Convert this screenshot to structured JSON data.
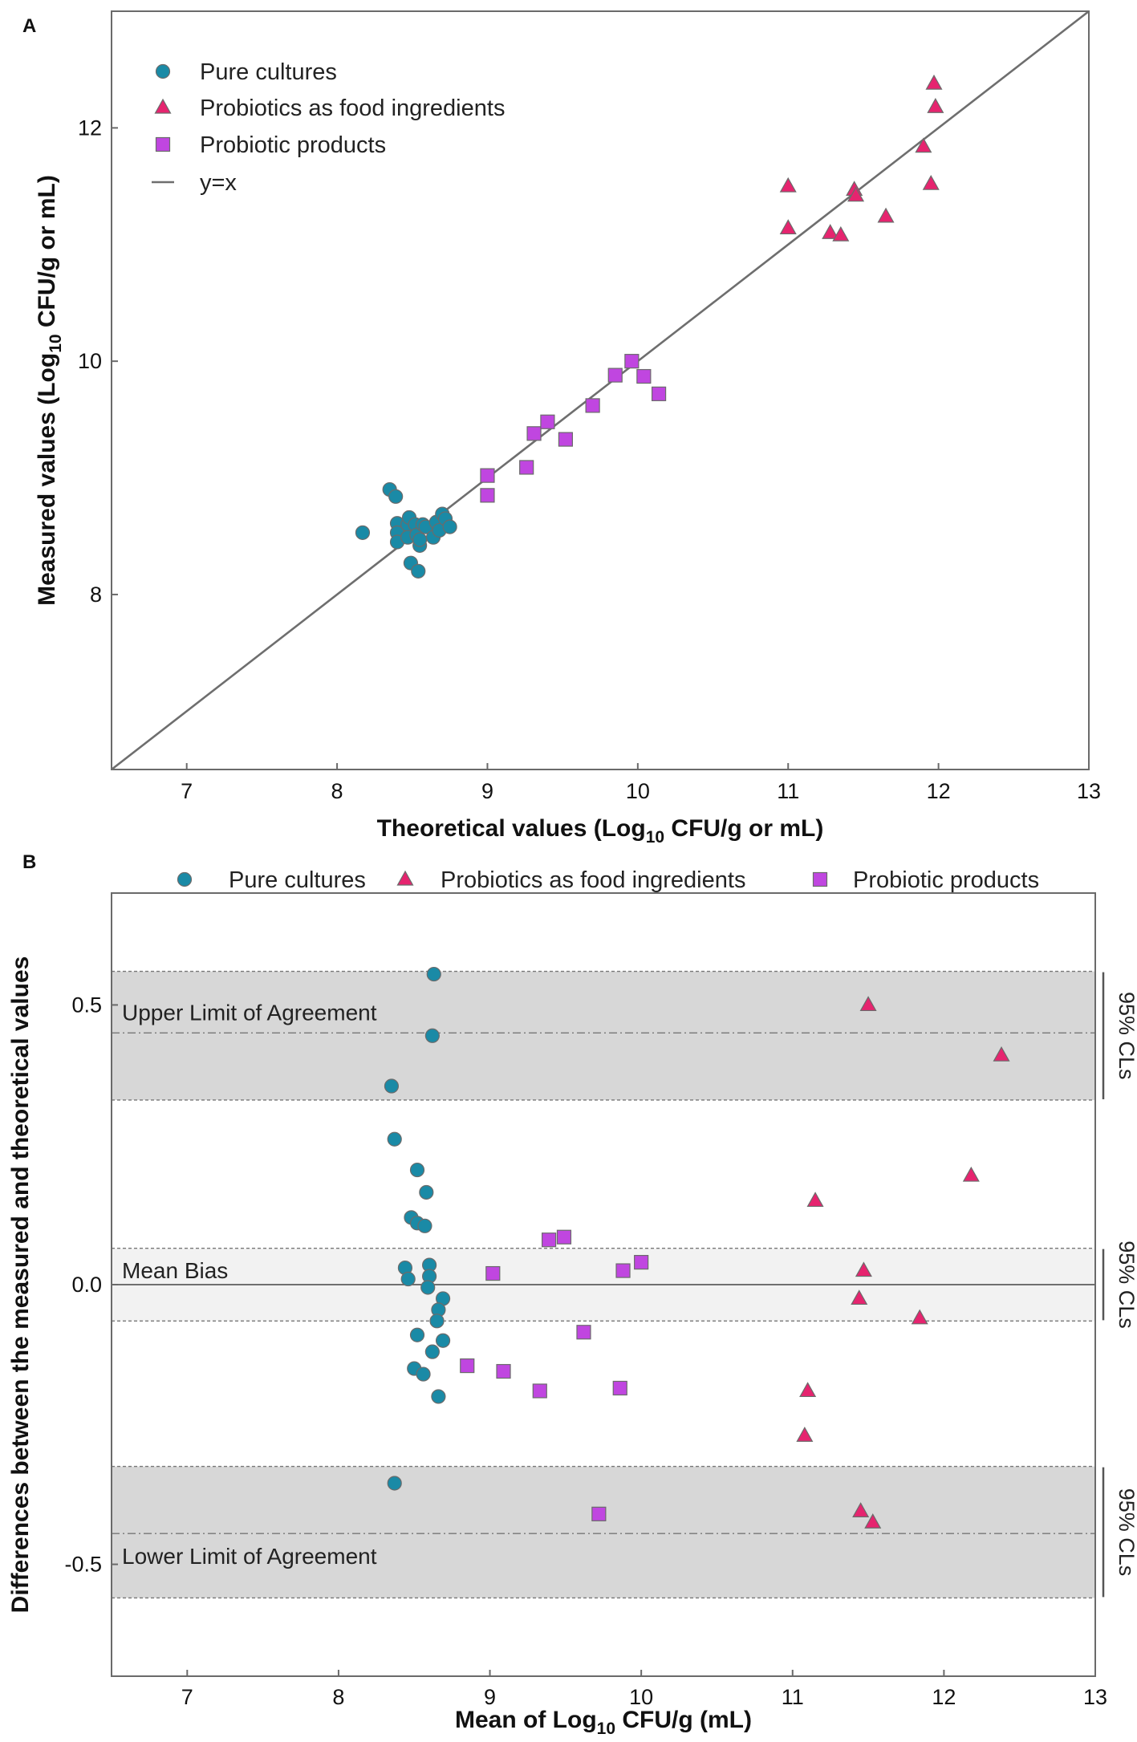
{
  "colors": {
    "pure_cultures": "#1a8aa6",
    "food_ingredients": "#e6246f",
    "probiotic_products": "#c046e0",
    "marker_edge": "#6b6b6b",
    "identity_line": "#6e6e6e",
    "loa_band": "#d7d7d7",
    "bias_band": "#f2f2f2"
  },
  "icons": {
    "pure_cultures": "circle-marker-icon",
    "food_ingredients": "triangle-marker-icon",
    "probiotic_products": "square-marker-icon",
    "identity_line": "line-icon"
  },
  "chart_data": [
    {
      "panel": "A",
      "type": "scatter",
      "xlabel": {
        "main": "Theoretical values (Log",
        "sub": "10",
        "end": " CFU/g or mL)"
      },
      "ylabel": {
        "main": "Measured values (Log",
        "sub": "10",
        "end": " CFU/g or mL)"
      },
      "xlim": [
        6.5,
        13
      ],
      "ylim": [
        6.5,
        13
      ],
      "xticks": [
        7,
        8,
        9,
        10,
        11,
        12,
        13
      ],
      "yticks": [
        8,
        10,
        12
      ],
      "grid": false,
      "legend_position": "top-left",
      "reference_line": {
        "label": "y=x",
        "slope": 1,
        "intercept": 0
      },
      "series": [
        {
          "name": "Pure cultures",
          "marker": "circle",
          "points": [
            [
              8.17,
              8.53
            ],
            [
              8.35,
              8.9
            ],
            [
              8.39,
              8.84
            ],
            [
              8.4,
              8.61
            ],
            [
              8.4,
              8.53
            ],
            [
              8.4,
              8.45
            ],
            [
              8.47,
              8.6
            ],
            [
              8.47,
              8.49
            ],
            [
              8.48,
              8.66
            ],
            [
              8.49,
              8.27
            ],
            [
              8.52,
              8.6
            ],
            [
              8.53,
              8.51
            ],
            [
              8.54,
              8.2
            ],
            [
              8.55,
              8.42
            ],
            [
              8.55,
              8.47
            ],
            [
              8.57,
              8.6
            ],
            [
              8.59,
              8.58
            ],
            [
              8.64,
              8.49
            ],
            [
              8.66,
              8.62
            ],
            [
              8.68,
              8.55
            ],
            [
              8.7,
              8.69
            ],
            [
              8.72,
              8.65
            ],
            [
              8.75,
              8.58
            ]
          ]
        },
        {
          "name": "Probiotics as food ingredients",
          "marker": "triangle",
          "points": [
            [
              11.0,
              11.5
            ],
            [
              11.0,
              11.14
            ],
            [
              11.28,
              11.1
            ],
            [
              11.35,
              11.08
            ],
            [
              11.44,
              11.47
            ],
            [
              11.45,
              11.42
            ],
            [
              11.65,
              11.24
            ],
            [
              11.9,
              11.84
            ],
            [
              11.95,
              11.52
            ],
            [
              11.97,
              12.38
            ],
            [
              11.98,
              12.18
            ]
          ]
        },
        {
          "name": "Probiotic products",
          "marker": "square",
          "points": [
            [
              9.0,
              9.02
            ],
            [
              9.0,
              8.85
            ],
            [
              9.26,
              9.09
            ],
            [
              9.31,
              9.38
            ],
            [
              9.4,
              9.48
            ],
            [
              9.52,
              9.33
            ],
            [
              9.7,
              9.62
            ],
            [
              9.85,
              9.88
            ],
            [
              9.96,
              10.0
            ],
            [
              10.04,
              9.87
            ],
            [
              10.14,
              9.72
            ]
          ]
        }
      ]
    },
    {
      "panel": "B",
      "type": "scatter",
      "subtype": "bland-altman",
      "xlabel": {
        "main": "Mean of Log",
        "sub": "10",
        "end": " CFU/g (mL)"
      },
      "ylabel": "Differences between the measured and theoretical values",
      "xlim": [
        6.5,
        13
      ],
      "ylim": [
        -0.7,
        0.7
      ],
      "xticks": [
        7,
        8,
        9,
        10,
        11,
        12,
        13
      ],
      "yticks": [
        0.5,
        0.0,
        -0.5
      ],
      "ytick_labels": [
        "0.5",
        "0.0",
        "-0.5"
      ],
      "grid": false,
      "legend_position": "top",
      "reference_lines": [
        {
          "label": "Upper Limit of Agreement",
          "value": 0.45,
          "ci": [
            0.33,
            0.56
          ],
          "ci_label": "95% CLs"
        },
        {
          "label": "Mean Bias",
          "value": 0.0,
          "ci": [
            -0.065,
            0.065
          ],
          "ci_label": "95% CLs"
        },
        {
          "label": "Lower Limit of Agreement",
          "value": -0.445,
          "ci": [
            -0.56,
            -0.325
          ],
          "ci_label": "95% CLs"
        }
      ],
      "series": [
        {
          "name": "Pure cultures",
          "marker": "circle",
          "points": [
            [
              8.63,
              0.555
            ],
            [
              8.62,
              0.445
            ],
            [
              8.35,
              0.355
            ],
            [
              8.37,
              0.26
            ],
            [
              8.52,
              0.205
            ],
            [
              8.58,
              0.165
            ],
            [
              8.48,
              0.12
            ],
            [
              8.52,
              0.11
            ],
            [
              8.57,
              0.105
            ],
            [
              8.44,
              0.03
            ],
            [
              8.6,
              0.035
            ],
            [
              8.46,
              0.01
            ],
            [
              8.6,
              0.015
            ],
            [
              8.59,
              -0.005
            ],
            [
              8.69,
              -0.025
            ],
            [
              8.66,
              -0.045
            ],
            [
              8.65,
              -0.065
            ],
            [
              8.52,
              -0.09
            ],
            [
              8.69,
              -0.1
            ],
            [
              8.62,
              -0.12
            ],
            [
              8.5,
              -0.15
            ],
            [
              8.56,
              -0.16
            ],
            [
              8.66,
              -0.2
            ],
            [
              8.37,
              -0.355
            ]
          ]
        },
        {
          "name": "Probiotics as food ingredients",
          "marker": "triangle",
          "points": [
            [
              11.5,
              0.5
            ],
            [
              12.38,
              0.41
            ],
            [
              12.18,
              0.195
            ],
            [
              11.15,
              0.15
            ],
            [
              11.47,
              0.025
            ],
            [
              11.44,
              -0.025
            ],
            [
              11.84,
              -0.06
            ],
            [
              11.1,
              -0.19
            ],
            [
              11.08,
              -0.27
            ],
            [
              11.45,
              -0.405
            ],
            [
              11.53,
              -0.425
            ]
          ]
        },
        {
          "name": "Probiotic products",
          "marker": "square",
          "points": [
            [
              9.39,
              0.08
            ],
            [
              9.49,
              0.085
            ],
            [
              9.02,
              0.02
            ],
            [
              9.88,
              0.025
            ],
            [
              10.0,
              0.04
            ],
            [
              9.62,
              -0.085
            ],
            [
              8.85,
              -0.145
            ],
            [
              9.09,
              -0.155
            ],
            [
              9.33,
              -0.19
            ],
            [
              9.86,
              -0.185
            ],
            [
              9.72,
              -0.41
            ]
          ]
        }
      ]
    }
  ]
}
